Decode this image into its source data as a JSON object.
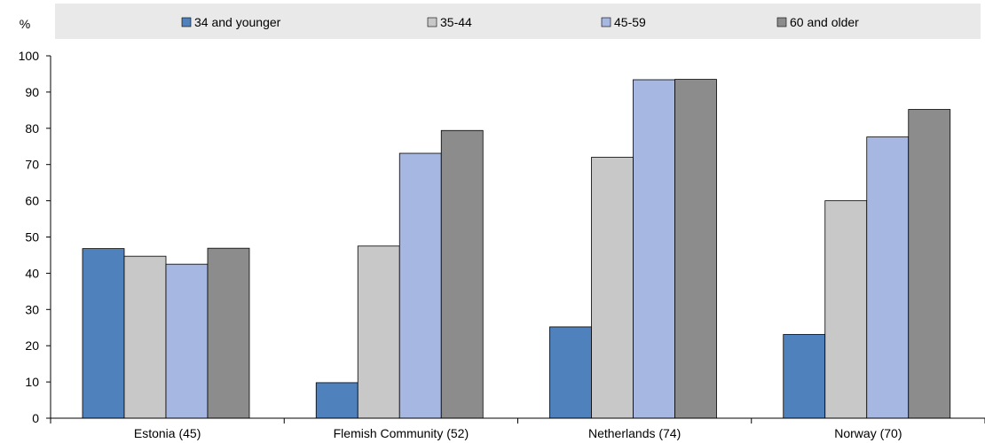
{
  "chart_data": {
    "type": "bar",
    "ylabel": "%",
    "ylim": [
      0,
      100
    ],
    "yticks": [
      0,
      10,
      20,
      30,
      40,
      50,
      60,
      70,
      80,
      90,
      100
    ],
    "categories": [
      "Estonia (45)",
      "Flemish Community (52)",
      "Netherlands (74)",
      "Norway (70)"
    ],
    "series": [
      {
        "name": "34 and younger",
        "color": "#4f81bd",
        "values": [
          46.8,
          9.8,
          25.2,
          23.1
        ]
      },
      {
        "name": "35-44",
        "color": "#c8c8c8",
        "values": [
          44.7,
          47.5,
          72.0,
          60.0
        ]
      },
      {
        "name": "45-59",
        "color": "#a6b7e1",
        "values": [
          42.5,
          73.1,
          93.4,
          77.6
        ]
      },
      {
        "name": "60 and older",
        "color": "#8c8c8c",
        "values": [
          46.9,
          79.4,
          93.5,
          85.2
        ]
      }
    ],
    "legend_position": "top",
    "grid": false
  }
}
